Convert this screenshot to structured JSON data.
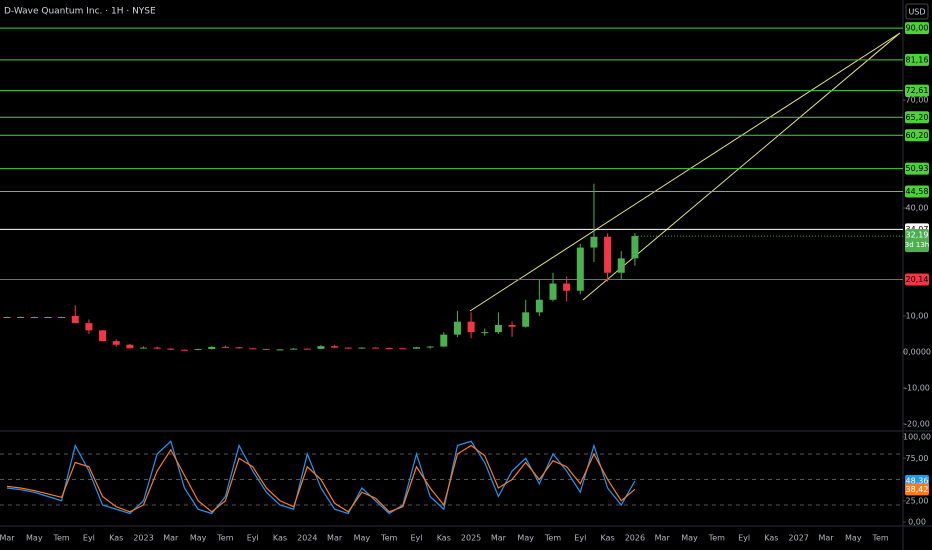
{
  "header": {
    "title": "D-Wave Quantum Inc. · 1H · NYSE",
    "currency": "USD"
  },
  "chart_data": [
    {
      "type": "candlestick",
      "open": [
        9.7,
        9.7,
        9.7,
        9.7,
        9.7,
        10,
        8,
        6,
        3,
        2,
        1,
        1.2,
        0.9,
        0.6,
        0.55,
        0.8,
        1.4,
        1.3,
        1.0,
        0.85,
        0.7,
        0.7,
        0.9,
        0.85,
        1.6,
        1.2,
        0.95,
        1.2,
        1.1,
        1.0,
        0.9,
        1.3,
        1.5,
        4.8,
        8.4,
        5.5,
        5.5,
        7.5,
        7,
        11,
        14.5,
        19,
        17,
        29,
        32,
        22,
        26
      ],
      "high": [
        9.8,
        9.8,
        9.8,
        9.8,
        9.8,
        13,
        9,
        6,
        3.5,
        2.2,
        1.5,
        1.5,
        1,
        0.7,
        0.9,
        1.6,
        1.8,
        1.4,
        1.1,
        0.9,
        0.8,
        1.1,
        1.0,
        1.9,
        2.0,
        1.3,
        1.3,
        1.3,
        1.2,
        1.1,
        1.4,
        1.6,
        5.5,
        11.4,
        11,
        6.5,
        11,
        8.5,
        14.5,
        20,
        22,
        21,
        30,
        46.75,
        33,
        28,
        33
      ],
      "low": [
        9.6,
        9.6,
        9.6,
        9.6,
        9.6,
        8,
        5,
        3,
        1.5,
        1,
        0.9,
        0.8,
        0.5,
        0.5,
        0.5,
        0.7,
        1.1,
        0.9,
        0.8,
        0.65,
        0.6,
        0.7,
        0.8,
        0.8,
        1.1,
        0.9,
        0.9,
        1.0,
        0.9,
        0.8,
        0.9,
        0.9,
        1.4,
        4.1,
        3.8,
        4.5,
        5,
        4.2,
        6.8,
        10,
        14,
        14,
        16,
        25,
        19.5,
        20,
        24
      ],
      "close": [
        9.7,
        9.7,
        9.7,
        9.7,
        9.7,
        8,
        6,
        3,
        2,
        1,
        1.2,
        0.9,
        0.6,
        0.55,
        0.8,
        1.4,
        1.3,
        1.0,
        0.85,
        0.7,
        0.7,
        0.9,
        0.85,
        1.6,
        1.2,
        0.95,
        1.2,
        1.1,
        1.0,
        0.9,
        1.3,
        1.5,
        4.8,
        8.4,
        5.5,
        5.5,
        7.5,
        7,
        11,
        14.5,
        19,
        17,
        29,
        32,
        22,
        26,
        32.19
      ],
      "last_value_label": "32,19",
      "countdown": "3d 13h",
      "up_color": "#4caf50",
      "down_color": "#f23645",
      "ylim": [
        -21.7,
        97.8
      ],
      "yticks": [
        {
          "value": 70,
          "label": "70,00"
        },
        {
          "value": 40,
          "label": "40,00"
        },
        {
          "value": 10,
          "label": "10,00"
        },
        {
          "value": 0,
          "label": "0,0000"
        },
        {
          "value": -10,
          "label": "-10,00"
        },
        {
          "value": -20,
          "label": "-20,00"
        }
      ],
      "levels": [
        {
          "value": 90,
          "label": "90,00",
          "color": "#4cd137"
        },
        {
          "value": 81.16,
          "label": "81,16",
          "color": "#4cd137"
        },
        {
          "value": 72.61,
          "label": "72,61",
          "color": "#4cd137"
        },
        {
          "value": 65.2,
          "label": "65,20",
          "color": "#4cd137"
        },
        {
          "value": 60.2,
          "label": "60,20",
          "color": "#4cd137"
        },
        {
          "value": 50.93,
          "label": "50,93",
          "color": "#4cd137"
        },
        {
          "value": 44.58,
          "label": "44,58",
          "color": "#4cd137"
        },
        {
          "value": 34.07,
          "label": "34,07",
          "color": "#ffffff"
        },
        {
          "value": 20.14,
          "label": "20,14",
          "color": "#f23645"
        }
      ]
    },
    {
      "type": "line",
      "series": [
        {
          "color": "#2196f3",
          "values": [
            40,
            38,
            35,
            30,
            25,
            90,
            60,
            20,
            15,
            10,
            25,
            80,
            95,
            40,
            15,
            10,
            30,
            90,
            60,
            35,
            20,
            15,
            80,
            40,
            15,
            10,
            40,
            25,
            10,
            20,
            80,
            30,
            15,
            90,
            95,
            70,
            30,
            60,
            75,
            45,
            80,
            60,
            35,
            90,
            40,
            20,
            48.36
          ],
          "value_label": "48,36"
        },
        {
          "color": "#ff7a1a",
          "values": [
            42,
            40,
            37,
            33,
            29,
            70,
            65,
            30,
            18,
            12,
            20,
            60,
            85,
            55,
            25,
            12,
            25,
            75,
            65,
            40,
            25,
            18,
            65,
            50,
            22,
            12,
            35,
            28,
            12,
            18,
            65,
            40,
            20,
            80,
            90,
            78,
            40,
            50,
            70,
            50,
            72,
            65,
            45,
            80,
            50,
            25,
            38.42
          ],
          "value_label": "38,42"
        }
      ],
      "ylim": [
        0,
        100
      ],
      "yticks": [
        {
          "value": 100,
          "label": "100,00"
        },
        {
          "value": 75,
          "label": "75,00"
        },
        {
          "value": 25,
          "label": "25,00"
        },
        {
          "value": 0,
          "label": "0,00"
        }
      ],
      "bands": [
        80,
        50,
        20
      ],
      "x_labels": [
        "Mar",
        "May",
        "Tem",
        "Eyl",
        "Kas",
        "2023",
        "Mar",
        "May",
        "Tem",
        "Eyl",
        "Kas",
        "2024",
        "Mar",
        "May",
        "Tem",
        "Eyl",
        "Kas",
        "2025",
        "Mar",
        "May",
        "Tem",
        "Eyl",
        "Kas",
        "2026",
        "Mar",
        "May",
        "Tem",
        "Eyl",
        "Kas",
        "2027",
        "Mar",
        "May",
        "Tem"
      ]
    }
  ]
}
